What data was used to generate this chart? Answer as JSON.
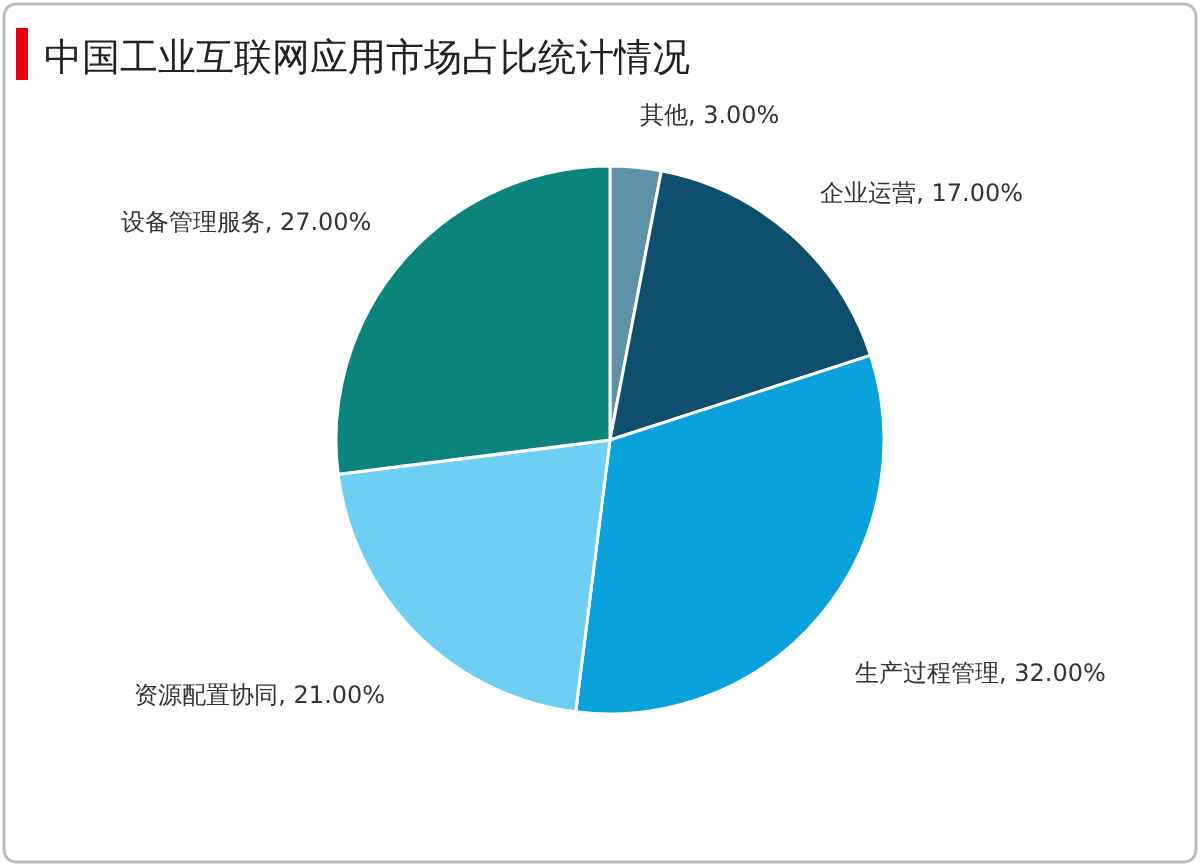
{
  "chart_data": {
    "type": "pie",
    "title": "中国工业互联网应用市场占比统计情况",
    "categories": [
      "其他",
      "企业运营",
      "生产过程管理",
      "资源配置协同",
      "设备管理服务"
    ],
    "values": [
      3,
      17,
      32,
      21,
      27
    ],
    "value_labels": [
      "3.00%",
      "17.00%",
      "32.00%",
      "21.00%",
      "27.00%"
    ],
    "colors": [
      "#5f92a8",
      "#0d4f6c",
      "#0aa2da",
      "#6ecff4",
      "#0b857b"
    ]
  }
}
